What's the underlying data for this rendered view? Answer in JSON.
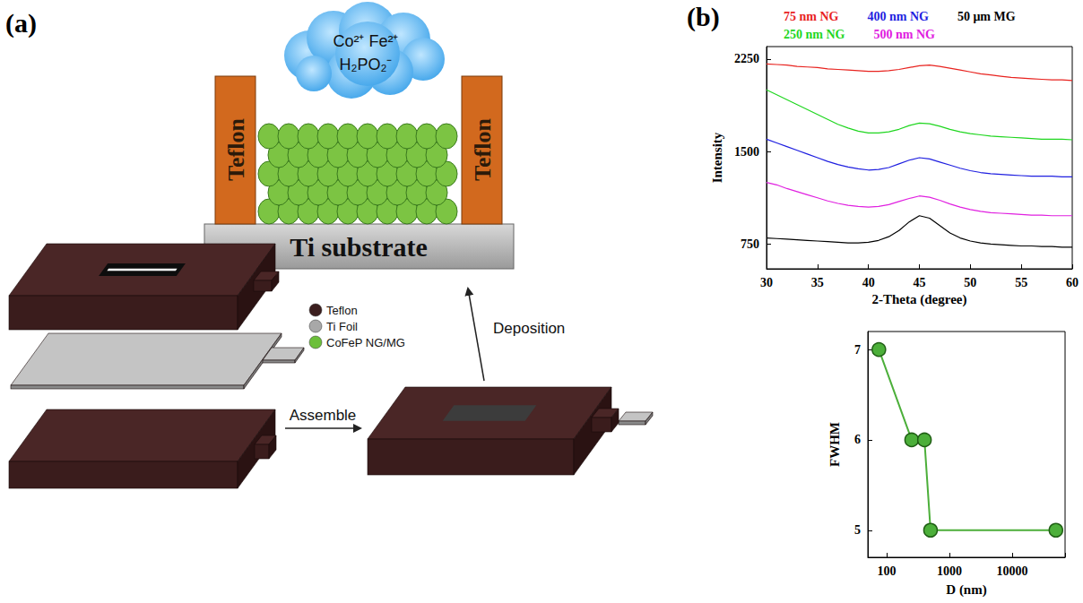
{
  "figure": {
    "panel_a": {
      "label": "(a)",
      "cloud_text": [
        "Co²⁺ Fe²⁺",
        "H₂PO₂⁻"
      ],
      "wall_label": "Teflon",
      "substrate_label": "Ti substrate",
      "key": [
        {
          "label": "Teflon",
          "color": "#3b1e1e"
        },
        {
          "label": "Ti Foil",
          "color": "#a8a8a8"
        },
        {
          "label": "CoFeP NG/MG",
          "color": "#6cbf3a"
        }
      ],
      "arrows": [
        "Assemble",
        "Deposition"
      ]
    },
    "panel_b": {
      "label": "(b)"
    }
  },
  "chart_data": [
    {
      "type": "line",
      "x_label": "2-Theta (degree)",
      "y_label": "Intensity",
      "x": [
        30,
        31,
        32,
        33,
        34,
        35,
        36,
        37,
        38,
        39,
        40,
        41,
        42,
        43,
        44,
        45,
        46,
        47,
        48,
        49,
        50,
        51,
        52,
        53,
        54,
        55,
        56,
        57,
        58,
        59,
        60
      ],
      "series": [
        {
          "name": "75 nm NG",
          "color": "#e8231f",
          "values": [
            2210,
            2205,
            2200,
            2190,
            2185,
            2180,
            2170,
            2165,
            2160,
            2155,
            2150,
            2150,
            2155,
            2165,
            2180,
            2195,
            2200,
            2190,
            2175,
            2160,
            2145,
            2130,
            2120,
            2110,
            2100,
            2095,
            2090,
            2085,
            2080,
            2080,
            2075
          ]
        },
        {
          "name": "250 nm NG",
          "color": "#1fd61f",
          "values": [
            2000,
            1960,
            1920,
            1880,
            1840,
            1800,
            1760,
            1720,
            1690,
            1665,
            1650,
            1650,
            1660,
            1680,
            1710,
            1730,
            1725,
            1705,
            1680,
            1660,
            1645,
            1635,
            1625,
            1620,
            1615,
            1610,
            1605,
            1600,
            1600,
            1600,
            1595
          ]
        },
        {
          "name": "400 nm NG",
          "color": "#1f1fe0",
          "values": [
            1600,
            1570,
            1540,
            1510,
            1480,
            1450,
            1420,
            1395,
            1375,
            1360,
            1350,
            1355,
            1370,
            1400,
            1430,
            1450,
            1440,
            1415,
            1390,
            1365,
            1345,
            1330,
            1320,
            1315,
            1310,
            1305,
            1300,
            1300,
            1300,
            1295,
            1295
          ]
        },
        {
          "name": "500 nm NG",
          "color": "#e020e0",
          "values": [
            1250,
            1230,
            1200,
            1175,
            1150,
            1125,
            1100,
            1080,
            1065,
            1055,
            1050,
            1055,
            1070,
            1095,
            1120,
            1140,
            1130,
            1105,
            1075,
            1050,
            1030,
            1015,
            1005,
            1000,
            995,
            990,
            985,
            985,
            980,
            980,
            980
          ]
        },
        {
          "name": "50 μm MG",
          "color": "#000000",
          "values": [
            800,
            795,
            790,
            785,
            780,
            775,
            770,
            765,
            760,
            760,
            765,
            780,
            810,
            860,
            930,
            980,
            960,
            900,
            840,
            800,
            775,
            760,
            750,
            745,
            740,
            735,
            735,
            730,
            730,
            725,
            725
          ]
        }
      ],
      "xlim": [
        30,
        60
      ],
      "xticks": [
        30,
        35,
        40,
        45,
        50,
        55,
        60
      ],
      "ylim": [
        550,
        2350
      ],
      "yticks": [
        750,
        1500,
        2250
      ],
      "grid": false,
      "legend": "top",
      "marker": "none",
      "line_style": "solid"
    },
    {
      "type": "line",
      "x_label": "D (nm)",
      "y_label": "FWHM",
      "x": [
        75,
        250,
        400,
        500,
        50000
      ],
      "values": [
        7,
        6,
        6,
        5,
        5
      ],
      "color": "#4caf3a",
      "xlim": [
        50,
        70000
      ],
      "xticks": [
        100,
        1000,
        10000
      ],
      "ylim": [
        4.7,
        7.2
      ],
      "yticks": [
        5,
        6,
        7
      ],
      "log": "x",
      "grid": false,
      "marker": "circle",
      "line_style": "solid"
    }
  ]
}
